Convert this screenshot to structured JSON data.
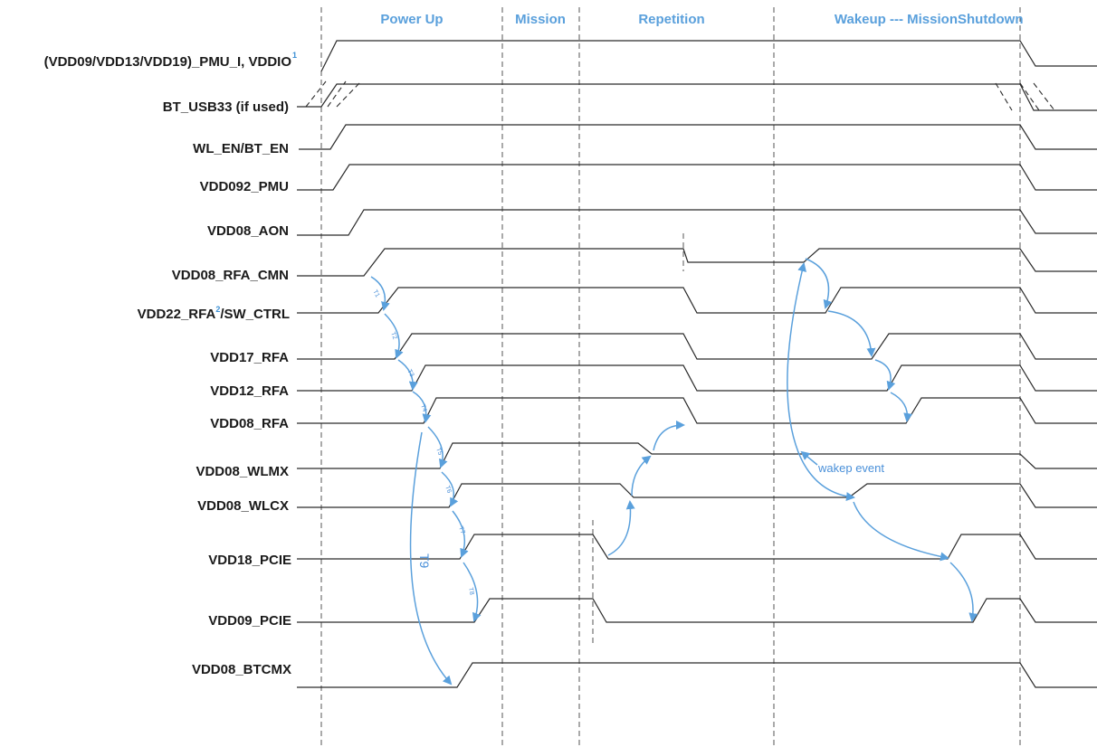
{
  "phases": {
    "power_up": "Power Up",
    "mission": "Mission",
    "repetition": "Repetition",
    "wakeup": "Wakeup --- Mission",
    "shutdown": "Shutdown"
  },
  "signals": {
    "s1_prefix": "(VDD09/VDD13/VDD19)_PMU_I, VDDIO",
    "s1_sup": "1",
    "s2": "BT_USB33 (if used)",
    "s3": "WL_EN/BT_EN",
    "s4": "VDD092_PMU",
    "s5": "VDD08_AON",
    "s6": "VDD08_RFA_CMN",
    "s7_prefix": "VDD22_RFA",
    "s7_sup": "2",
    "s7_suffix": "/SW_CTRL",
    "s8": "VDD17_RFA",
    "s9": "VDD12_RFA",
    "s10": "VDD08_RFA",
    "s11": "VDD08_WLMX",
    "s12": "VDD08_WLCX",
    "s13": "VDD18_PCIE",
    "s14": "VDD09_PCIE",
    "s15": "VDD08_BTCMX"
  },
  "annotations": {
    "wake_event": "wakep event",
    "t9": "T9",
    "t1": "T1",
    "t2": "T2",
    "t3": "T3",
    "t4": "T4",
    "t5": "T5",
    "t6": "T6",
    "t7": "T7",
    "t8": "T8"
  },
  "colors": {
    "phase_text": "#5aa0dc",
    "arrow": "#5aa0dc",
    "waveform": "#2a2a2a"
  }
}
